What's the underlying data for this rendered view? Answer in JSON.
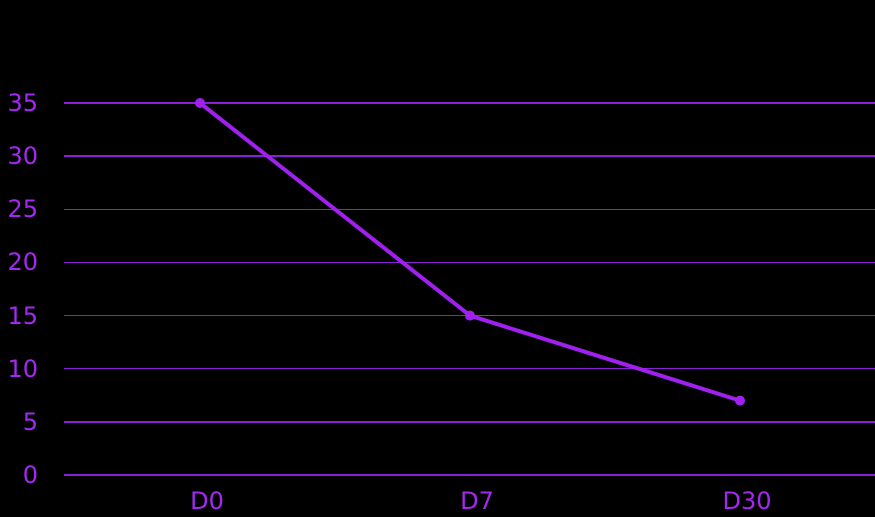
{
  "colors": {
    "background": "#000000",
    "accent": "#a020f0",
    "grid": "#8b1fd6",
    "text": "#a328f0"
  },
  "chart_data": {
    "type": "line",
    "title": "",
    "xlabel": "",
    "ylabel": "",
    "categories": [
      "D0",
      "D7",
      "D30"
    ],
    "series": [
      {
        "name": "value",
        "values": [
          35,
          15,
          7
        ]
      }
    ],
    "yticks": [
      0,
      5,
      10,
      15,
      20,
      25,
      30,
      35
    ],
    "ylim": [
      0,
      35
    ],
    "grid": true,
    "legend": null
  }
}
